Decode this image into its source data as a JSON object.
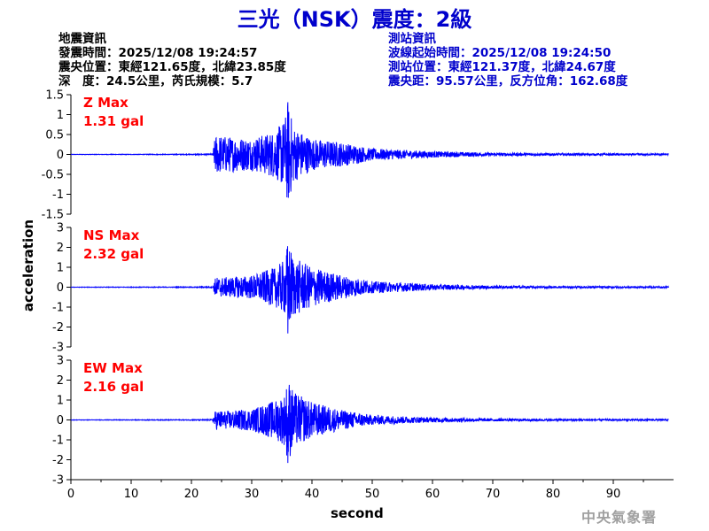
{
  "title": "三光（NSK）震度：2級",
  "quake_info": {
    "heading": "地震資訊",
    "time_line": "發震時間：2025/12/08 19:24:57",
    "epicenter_line": "震央位置：東經121.65度，北緯23.85度",
    "depth_line": "深　度：24.5公里，芮氏規模：5.7"
  },
  "station_info": {
    "heading": "測站資訊",
    "wave_start_line": "波線起始時間：2025/12/08 19:24:50",
    "station_line": "測站位置：東經121.37度，北緯24.67度",
    "distance_line": "震央距：95.57公里，反方位角：162.68度"
  },
  "agency": "中央氣象署",
  "colors": {
    "title": "#0000cc",
    "trace": "#0000ff",
    "max_label": "#ff0000",
    "info_right": "#0000cc",
    "agency": "#a0a0a0"
  },
  "chart_data": [
    {
      "type": "line",
      "component": "Z",
      "max_label": "Z Max",
      "max_value": "1.31 gal",
      "ylim": [
        -1.5,
        1.5
      ],
      "yticks": [
        "1.5",
        "1",
        "0.5",
        "0",
        "-0.5",
        "-1",
        "-1.5"
      ],
      "peak_abs": 1.31,
      "series": [
        {
          "x": [
            0,
            20,
            23.5,
            24,
            26,
            30,
            34,
            35.5,
            36,
            37,
            40,
            45,
            50,
            60,
            70,
            80,
            99
          ],
          "envelope": [
            0.005,
            0.01,
            0.02,
            0.5,
            0.45,
            0.4,
            0.6,
            0.9,
            1.31,
            0.7,
            0.4,
            0.3,
            0.15,
            0.08,
            0.04,
            0.03,
            0.02
          ]
        }
      ]
    },
    {
      "type": "line",
      "component": "NS",
      "max_label": "NS Max",
      "max_value": "2.32 gal",
      "ylim": [
        -3,
        3
      ],
      "yticks": [
        "3",
        "2",
        "1",
        "0",
        "-1",
        "-2",
        "-3"
      ],
      "peak_abs": 2.32,
      "series": [
        {
          "x": [
            0,
            20,
            23.5,
            24,
            26,
            30,
            34,
            35.5,
            36,
            37,
            40,
            45,
            50,
            60,
            70,
            80,
            99
          ],
          "envelope": [
            0.01,
            0.02,
            0.03,
            0.5,
            0.5,
            0.6,
            1.0,
            1.4,
            2.32,
            1.5,
            1.0,
            0.6,
            0.3,
            0.15,
            0.08,
            0.05,
            0.04
          ]
        }
      ]
    },
    {
      "type": "line",
      "component": "EW",
      "max_label": "EW Max",
      "max_value": "2.16 gal",
      "ylim": [
        -3,
        3
      ],
      "yticks": [
        "3",
        "2",
        "1",
        "0",
        "-1",
        "-2",
        "-3"
      ],
      "peak_abs": 2.16,
      "series": [
        {
          "x": [
            0,
            20,
            23.5,
            24,
            26,
            30,
            34,
            35.5,
            36,
            37,
            40,
            45,
            50,
            60,
            70,
            80,
            99
          ],
          "envelope": [
            0.01,
            0.02,
            0.03,
            0.5,
            0.45,
            0.55,
            1.0,
            1.3,
            2.16,
            1.4,
            0.9,
            0.5,
            0.25,
            0.12,
            0.07,
            0.05,
            0.04
          ]
        }
      ]
    }
  ],
  "x_axis": {
    "label": "second",
    "label_y": "acceleration",
    "ticks": [
      0,
      10,
      20,
      30,
      40,
      50,
      60,
      70,
      80,
      90
    ],
    "xlim": [
      0,
      100
    ]
  }
}
